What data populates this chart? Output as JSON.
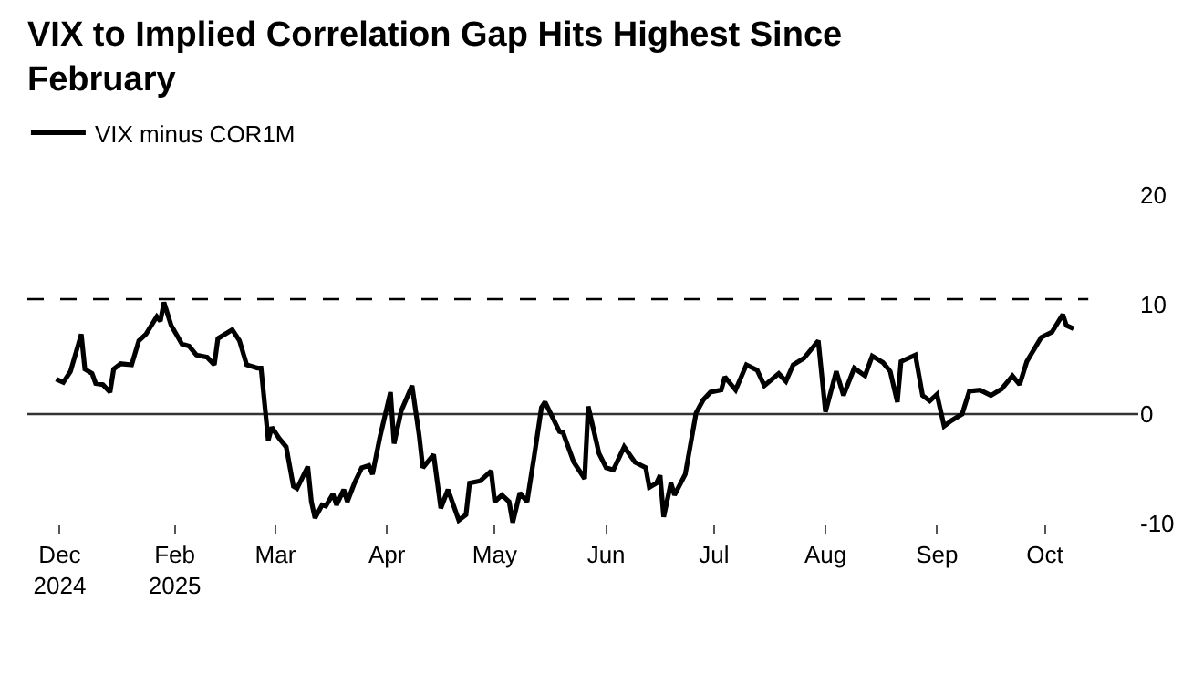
{
  "chart_data": {
    "type": "line",
    "title": "VIX to Implied Correlation Gap Hits Highest Since February",
    "x": [
      "2024-12-30",
      "2025-01-01",
      "2025-01-03",
      "2025-01-06",
      "2025-01-07",
      "2025-01-09",
      "2025-01-10",
      "2025-01-12",
      "2025-01-14",
      "2025-01-15",
      "2025-01-17",
      "2025-01-20",
      "2025-01-22",
      "2025-01-24",
      "2025-01-27",
      "2025-01-28",
      "2025-01-29",
      "2025-01-31",
      "2025-02-03",
      "2025-02-05",
      "2025-02-07",
      "2025-02-10",
      "2025-02-12",
      "2025-02-13",
      "2025-02-17",
      "2025-02-19",
      "2025-02-21",
      "2025-02-24",
      "2025-02-25",
      "2025-02-27",
      "2025-02-28",
      "2025-03-02",
      "2025-03-04",
      "2025-03-06",
      "2025-03-07",
      "2025-03-10",
      "2025-03-11",
      "2025-03-12",
      "2025-03-14",
      "2025-03-15",
      "2025-03-17",
      "2025-03-18",
      "2025-03-20",
      "2025-03-21",
      "2025-03-23",
      "2025-03-25",
      "2025-03-27",
      "2025-03-28",
      "2025-03-30",
      "2025-04-02",
      "2025-04-03",
      "2025-04-05",
      "2025-04-08",
      "2025-04-10",
      "2025-04-11",
      "2025-04-14",
      "2025-04-16",
      "2025-04-18",
      "2025-04-21",
      "2025-04-23",
      "2025-04-24",
      "2025-04-27",
      "2025-04-30",
      "2025-05-01",
      "2025-05-03",
      "2025-05-05",
      "2025-05-06",
      "2025-05-08",
      "2025-05-10",
      "2025-05-12",
      "2025-05-14",
      "2025-05-15",
      "2025-05-19",
      "2025-05-20",
      "2025-05-23",
      "2025-05-26",
      "2025-05-27",
      "2025-05-30",
      "2025-06-01",
      "2025-06-03",
      "2025-06-06",
      "2025-06-09",
      "2025-06-12",
      "2025-06-13",
      "2025-06-15",
      "2025-06-16",
      "2025-06-17",
      "2025-06-19",
      "2025-06-20",
      "2025-06-23",
      "2025-06-26",
      "2025-06-28",
      "2025-06-30",
      "2025-07-03",
      "2025-07-04",
      "2025-07-07",
      "2025-07-10",
      "2025-07-13",
      "2025-07-15",
      "2025-07-19",
      "2025-07-21",
      "2025-07-23",
      "2025-07-26",
      "2025-07-30",
      "2025-08-01",
      "2025-08-04",
      "2025-08-06",
      "2025-08-09",
      "2025-08-12",
      "2025-08-14",
      "2025-08-17",
      "2025-08-19",
      "2025-08-21",
      "2025-08-22",
      "2025-08-26",
      "2025-08-28",
      "2025-08-30",
      "2025-09-01",
      "2025-09-03",
      "2025-09-05",
      "2025-09-08",
      "2025-09-10",
      "2025-09-13",
      "2025-09-16",
      "2025-09-19",
      "2025-09-22",
      "2025-09-24",
      "2025-09-26",
      "2025-09-30",
      "2025-10-03",
      "2025-10-06",
      "2025-10-07",
      "2025-10-09"
    ],
    "series": [
      {
        "name": "VIX minus COR1M",
        "color": "#000000",
        "values": [
          3.2,
          2.9,
          3.9,
          7.3,
          4.1,
          3.7,
          2.8,
          2.7,
          2.0,
          4.1,
          4.6,
          4.5,
          6.7,
          7.3,
          8.9,
          8.5,
          10.2,
          8.1,
          6.4,
          6.2,
          5.4,
          5.2,
          4.5,
          6.9,
          7.7,
          6.7,
          4.5,
          4.2,
          4.2,
          -2.4,
          -1.2,
          -2.2,
          -3.0,
          -6.6,
          -6.8,
          -4.8,
          -8.0,
          -9.5,
          -8.3,
          -8.4,
          -7.3,
          -8.3,
          -6.9,
          -8.0,
          -6.3,
          -4.9,
          -4.7,
          -5.5,
          -2.2,
          2.0,
          -2.7,
          0.3,
          2.6,
          -2.0,
          -4.9,
          -3.7,
          -8.6,
          -6.9,
          -9.7,
          -9.2,
          -6.3,
          -6.1,
          -5.2,
          -8.0,
          -7.4,
          -8.0,
          -9.9,
          -7.2,
          -8.0,
          -3.8,
          0.6,
          1.1,
          -1.6,
          -1.7,
          -4.4,
          -5.9,
          0.7,
          -3.6,
          -4.9,
          -5.1,
          -3.0,
          -4.4,
          -4.9,
          -6.7,
          -6.3,
          -5.6,
          -9.4,
          -6.3,
          -7.4,
          -5.5,
          0.1,
          1.3,
          2.0,
          2.2,
          3.4,
          2.2,
          4.5,
          4.0,
          2.6,
          3.7,
          3.0,
          4.5,
          5.1,
          6.7,
          0.2,
          3.9,
          1.7,
          4.2,
          3.5,
          5.3,
          4.7,
          3.9,
          1.1,
          4.8,
          5.4,
          1.7,
          1.2,
          1.8,
          -1.1,
          -0.6,
          0.0,
          2.1,
          2.2,
          1.7,
          2.3,
          3.5,
          2.7,
          4.8,
          7.0,
          7.5,
          9.1,
          8.1,
          7.8
        ]
      }
    ],
    "xlim": [
      "2024-12-22",
      "2025-10-27"
    ],
    "xticks": [
      {
        "value": "2024-12-31",
        "label": "Dec\n2024"
      },
      {
        "value": "2025-02-01",
        "label": "Feb\n2025"
      },
      {
        "value": "2025-03-01",
        "label": "Mar"
      },
      {
        "value": "2025-04-01",
        "label": "Apr"
      },
      {
        "value": "2025-05-01",
        "label": "May"
      },
      {
        "value": "2025-06-01",
        "label": "Jun"
      },
      {
        "value": "2025-07-01",
        "label": "Jul"
      },
      {
        "value": "2025-08-01",
        "label": "Aug"
      },
      {
        "value": "2025-09-01",
        "label": "Sep"
      },
      {
        "value": "2025-10-01",
        "label": "Oct"
      }
    ],
    "ylim": [
      -10,
      20
    ],
    "yticks": [
      -10,
      0,
      10,
      20
    ],
    "ref_lines": [
      {
        "axis": "y",
        "value": 0,
        "line_style": "solid",
        "color": "#333333"
      },
      {
        "axis": "y",
        "value": 10.5,
        "line_style": "dashed",
        "color": "#000000"
      }
    ],
    "grid": false,
    "legend": "top left",
    "line_style": "solid",
    "marker": "none"
  }
}
